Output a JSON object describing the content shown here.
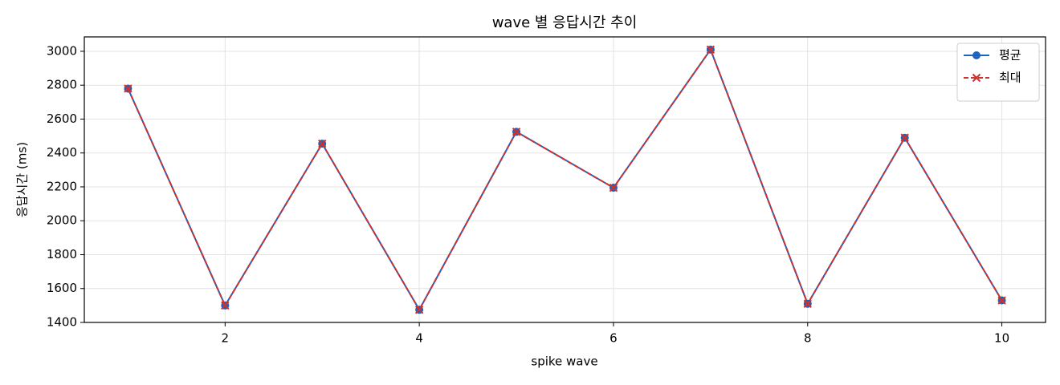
{
  "chart_data": {
    "type": "line",
    "title": "wave 별 응답시간 추이",
    "x_label": "spike wave",
    "y_label": "응답시간 (ms)",
    "x": [
      1,
      2,
      3,
      4,
      5,
      6,
      7,
      8,
      9,
      10
    ],
    "series": [
      {
        "name": "평균",
        "color": "#1f63bd",
        "linestyle": "solid",
        "marker": "o",
        "values": [
          2780,
          1500,
          2455,
          1475,
          2525,
          2195,
          3010,
          1510,
          2490,
          1530
        ]
      },
      {
        "name": "최대",
        "color": "#d0312d",
        "linestyle": "dashed",
        "marker": "x",
        "values": [
          2780,
          1500,
          2455,
          1475,
          2525,
          2195,
          3010,
          1510,
          2490,
          1530
        ]
      }
    ],
    "xlim": [
      0.55,
      10.45
    ],
    "xticks": [
      2,
      4,
      6,
      8,
      10
    ],
    "ylim": [
      1400,
      3085
    ],
    "yticks": [
      1400,
      1600,
      1800,
      2000,
      2200,
      2400,
      2600,
      2800,
      3000
    ],
    "grid": true,
    "legend": "upper right"
  }
}
